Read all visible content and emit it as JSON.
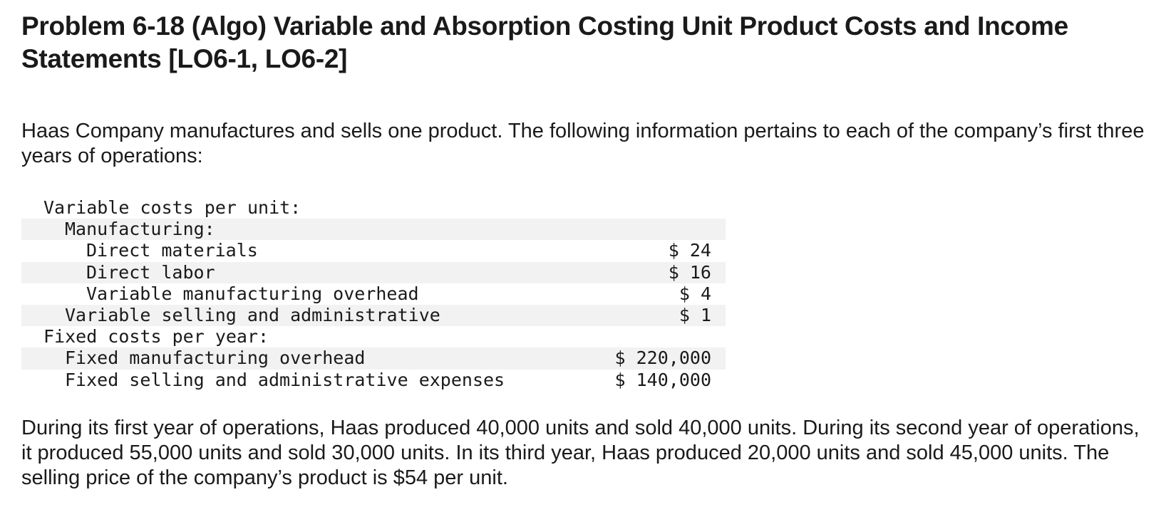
{
  "title": "Problem 6-18 (Algo) Variable and Absorption Costing Unit Product Costs and Income Statements [LO6-1, LO6-2]",
  "intro": "Haas Company manufactures and sells one product. The following information pertains to each of the company’s first three years of operations:",
  "cost_table": {
    "rows": [
      {
        "label": "Variable costs per unit:",
        "value": ""
      },
      {
        "label": "Manufacturing:",
        "value": ""
      },
      {
        "label": "Direct materials",
        "value": "$ 24"
      },
      {
        "label": "Direct labor",
        "value": "$ 16"
      },
      {
        "label": "Variable manufacturing overhead",
        "value": "$ 4"
      },
      {
        "label": "Variable selling and administrative",
        "value": "$ 1"
      },
      {
        "label": "Fixed costs per year:",
        "value": ""
      },
      {
        "label": "Fixed manufacturing overhead",
        "value": "$ 220,000"
      },
      {
        "label": "Fixed selling and administrative expenses",
        "value": "$ 140,000"
      }
    ]
  },
  "outro": "During its first year of operations, Haas produced 40,000 units and sold 40,000 units. During its second year of operations, it produced 55,000 units and sold 30,000 units. In its third year, Haas produced 20,000 units and sold 45,000 units. The selling price of the company’s product is $54 per unit."
}
